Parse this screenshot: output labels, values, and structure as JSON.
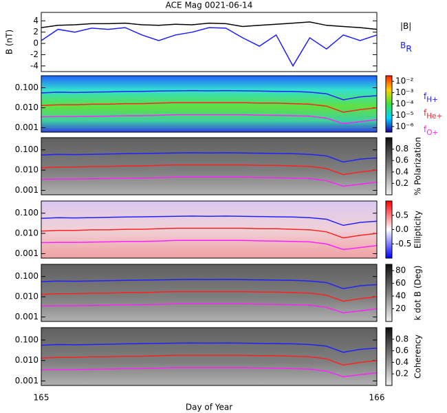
{
  "chart_data": [
    {
      "type": "line",
      "title": "ACE Mag 0021-06-14",
      "ylabel": "B (nT)",
      "x": [
        165,
        165.05,
        165.1,
        165.15,
        165.2,
        165.25,
        165.3,
        165.35,
        165.4,
        165.45,
        165.5,
        165.55,
        165.6,
        165.65,
        165.7,
        165.75,
        165.8,
        165.85,
        165.9,
        165.95,
        166
      ],
      "xlim": [
        165,
        166
      ],
      "ylim": [
        -5,
        5.5
      ],
      "yticks": [
        -4,
        -2,
        0,
        2,
        4
      ],
      "series": [
        {
          "name": "|B|",
          "color": "#000000",
          "values": [
            2.8,
            3.2,
            3.3,
            3.5,
            3.5,
            3.6,
            3.3,
            3.2,
            3.4,
            3.3,
            3.6,
            3.5,
            3.0,
            3.2,
            3.4,
            3.6,
            3.8,
            3.2,
            3.0,
            2.8,
            2.5
          ]
        },
        {
          "name": "BR",
          "color": "#1a1aff",
          "values": [
            0.5,
            2.5,
            2.0,
            2.7,
            2.5,
            2.8,
            1.5,
            0.5,
            1.5,
            2.0,
            2.8,
            2.7,
            1.0,
            -0.5,
            1.5,
            -4.0,
            1.0,
            -1.0,
            1.5,
            0.5,
            1.5
          ]
        }
      ]
    },
    {
      "type": "spectrogram",
      "colormap": "rainbow",
      "log_y": true,
      "ylim": [
        0.0006,
        0.4
      ],
      "yticks": [
        {
          "value": 0.001,
          "label": "0.001"
        },
        {
          "value": 0.01,
          "label": "0.010"
        },
        {
          "value": 0.1,
          "label": "0.100"
        }
      ],
      "clim": [
        0,
        5
      ],
      "cticks": [
        {
          "value": 4.5,
          "label": "10⁻²"
        },
        {
          "value": 3.5,
          "label": "10⁻³"
        },
        {
          "value": 2.5,
          "label": "10⁻⁴"
        },
        {
          "value": 1.5,
          "label": "10⁻⁵"
        },
        {
          "value": 0.5,
          "label": "10⁻⁶"
        }
      ],
      "x": [
        165,
        165.05,
        165.1,
        165.15,
        165.2,
        165.25,
        165.3,
        165.35,
        165.4,
        165.45,
        165.5,
        165.55,
        165.6,
        165.65,
        165.7,
        165.75,
        165.8,
        165.85,
        165.9,
        165.95,
        166
      ],
      "xlim": [
        165,
        166
      ],
      "series": [
        {
          "name": "fH+",
          "color": "#2020ff",
          "values": [
            0.055,
            0.06,
            0.058,
            0.06,
            0.062,
            0.065,
            0.066,
            0.068,
            0.07,
            0.072,
            0.07,
            0.072,
            0.07,
            0.068,
            0.066,
            0.065,
            0.06,
            0.05,
            0.025,
            0.035,
            0.04
          ]
        },
        {
          "name": "fHe+",
          "color": "#ff2020",
          "values": [
            0.013,
            0.014,
            0.014,
            0.015,
            0.015,
            0.016,
            0.016,
            0.017,
            0.018,
            0.018,
            0.018,
            0.018,
            0.018,
            0.017,
            0.017,
            0.016,
            0.015,
            0.012,
            0.006,
            0.008,
            0.01
          ]
        },
        {
          "name": "fO+",
          "color": "#ff20ff",
          "values": [
            0.0035,
            0.0036,
            0.0036,
            0.0037,
            0.0038,
            0.004,
            0.004,
            0.0042,
            0.0045,
            0.0045,
            0.0045,
            0.0045,
            0.0045,
            0.0043,
            0.0042,
            0.004,
            0.0038,
            0.003,
            0.0016,
            0.002,
            0.0025
          ]
        }
      ]
    },
    {
      "type": "spectrogram",
      "colormap": "gray",
      "log_y": true,
      "ylim": [
        0.0006,
        0.4
      ],
      "colorbar_label": "% Polarization",
      "yticks": [
        {
          "value": 0.001,
          "label": "0.001"
        },
        {
          "value": 0.01,
          "label": "0.010"
        },
        {
          "value": 0.1,
          "label": "0.100"
        }
      ],
      "clim": [
        0,
        1
      ],
      "cticks": [
        0.2,
        0.4,
        0.6,
        0.8
      ],
      "same_lines_as": 1
    },
    {
      "type": "spectrogram",
      "colormap": "bwr",
      "log_y": true,
      "ylim": [
        0.0006,
        0.4
      ],
      "colorbar_label": "Ellipticity",
      "yticks": [
        {
          "value": 0.001,
          "label": "0.001"
        },
        {
          "value": 0.01,
          "label": "0.010"
        },
        {
          "value": 0.1,
          "label": "0.100"
        }
      ],
      "clim": [
        -1,
        1
      ],
      "cticks": [
        -0.5,
        {
          "value": 0,
          "label": "0.0"
        },
        0.5
      ],
      "same_lines_as": 1
    },
    {
      "type": "spectrogram",
      "colormap": "gray",
      "log_y": true,
      "ylim": [
        0.0006,
        0.4
      ],
      "colorbar_label": "k dot B (Deg)",
      "yticks": [
        {
          "value": 0.001,
          "label": "0.001"
        },
        {
          "value": 0.01,
          "label": "0.010"
        },
        {
          "value": 0.1,
          "label": "0.100"
        }
      ],
      "clim": [
        0,
        90
      ],
      "cticks": [
        20,
        40,
        60,
        80
      ],
      "same_lines_as": 1
    },
    {
      "type": "spectrogram",
      "colormap": "gray",
      "log_y": true,
      "ylim": [
        0.0006,
        0.4
      ],
      "colorbar_label": "Coherency",
      "yticks": [
        {
          "value": 0.001,
          "label": "0.001"
        },
        {
          "value": 0.01,
          "label": "0.010"
        },
        {
          "value": 0.1,
          "label": "0.100"
        }
      ],
      "clim": [
        0,
        1
      ],
      "cticks": [
        0.2,
        0.4,
        0.6,
        0.8
      ],
      "same_lines_as": 1,
      "xlabel": "Day of Year",
      "xticks": [
        165,
        166
      ]
    }
  ]
}
